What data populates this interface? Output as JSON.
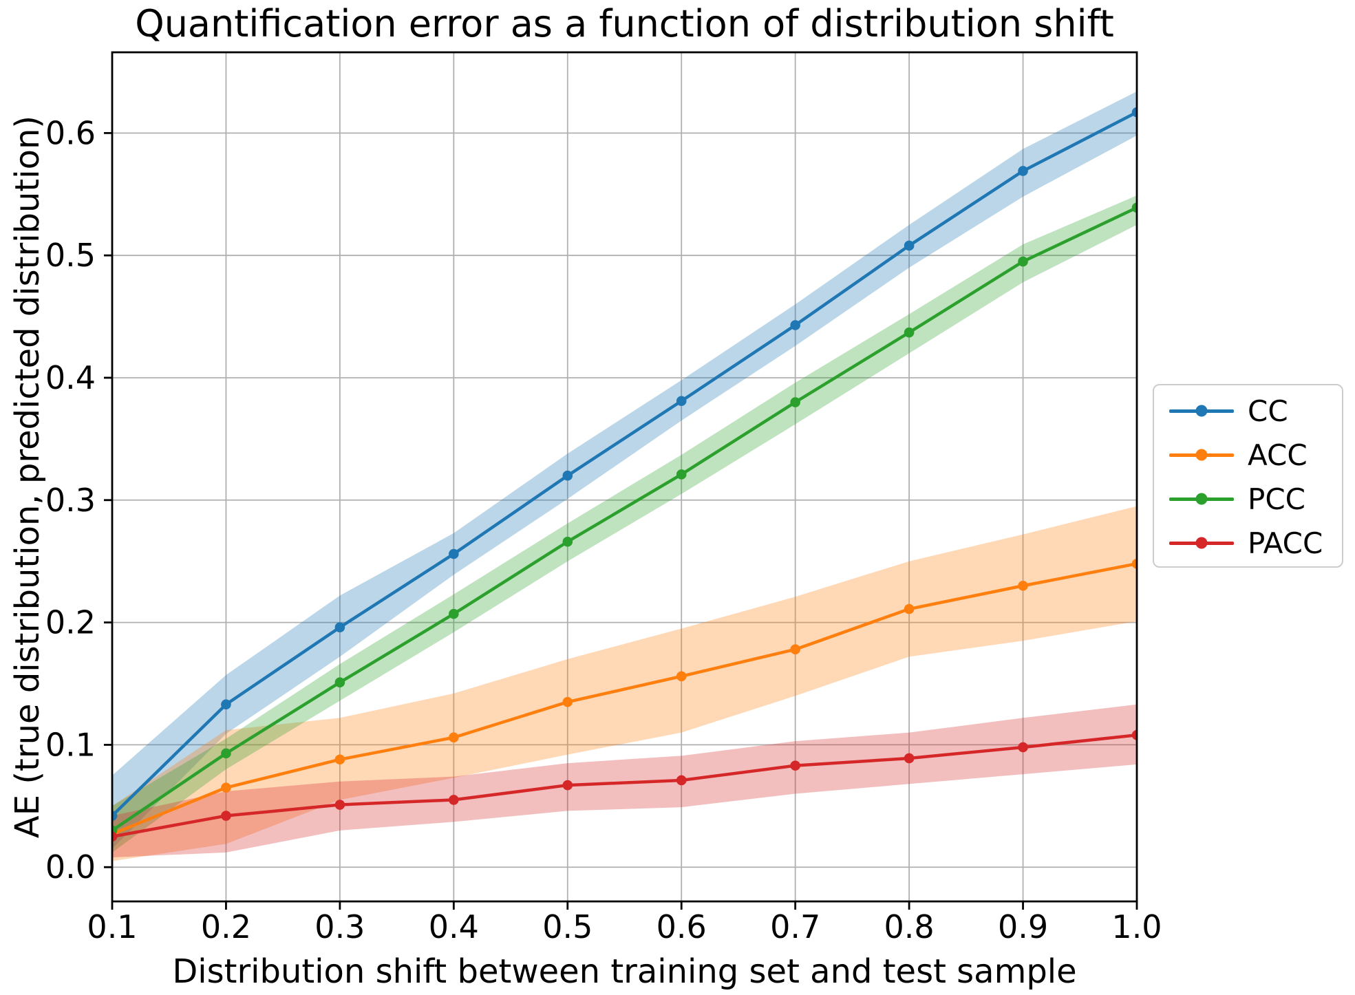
{
  "chart_data": {
    "type": "line",
    "title": "Quantification error as a function of distribution shift",
    "xlabel": "Distribution shift between training set and test sample",
    "ylabel": "AE (true distribution, predicted distribution)",
    "x": [
      0.1,
      0.2,
      0.3,
      0.4,
      0.5,
      0.6,
      0.7,
      0.8,
      0.9,
      1.0
    ],
    "x_ticks": [
      "0.1",
      "0.2",
      "0.3",
      "0.4",
      "0.5",
      "0.6",
      "0.7",
      "0.8",
      "0.9",
      "1.0"
    ],
    "y_ticks": [
      "0.0",
      "0.1",
      "0.2",
      "0.3",
      "0.4",
      "0.5",
      "0.6"
    ],
    "xlim": [
      0.1,
      1.0
    ],
    "ylim": [
      -0.028,
      0.666
    ],
    "grid": true,
    "legend_position": "outside-center-right",
    "band_opacity": 0.3,
    "series": [
      {
        "name": "CC",
        "color": "#1f77b4",
        "values": [
          0.042,
          0.133,
          0.196,
          0.256,
          0.32,
          0.381,
          0.443,
          0.508,
          0.569,
          0.617
        ],
        "band_upper": [
          0.075,
          0.157,
          0.222,
          0.273,
          0.338,
          0.398,
          0.46,
          0.525,
          0.587,
          0.634
        ],
        "band_lower": [
          0.015,
          0.109,
          0.172,
          0.239,
          0.301,
          0.365,
          0.426,
          0.49,
          0.548,
          0.598
        ]
      },
      {
        "name": "ACC",
        "color": "#ff7f0e",
        "values": [
          0.027,
          0.065,
          0.088,
          0.106,
          0.135,
          0.156,
          0.178,
          0.211,
          0.23,
          0.248
        ],
        "band_upper": [
          0.05,
          0.112,
          0.122,
          0.142,
          0.17,
          0.195,
          0.221,
          0.25,
          0.272,
          0.295
        ],
        "band_lower": [
          0.005,
          0.019,
          0.055,
          0.073,
          0.092,
          0.11,
          0.14,
          0.172,
          0.185,
          0.201
        ]
      },
      {
        "name": "PCC",
        "color": "#2ca02c",
        "values": [
          0.03,
          0.093,
          0.151,
          0.207,
          0.266,
          0.321,
          0.38,
          0.437,
          0.495,
          0.539
        ],
        "band_upper": [
          0.05,
          0.105,
          0.166,
          0.223,
          0.281,
          0.337,
          0.396,
          0.452,
          0.509,
          0.549
        ],
        "band_lower": [
          0.012,
          0.08,
          0.136,
          0.192,
          0.25,
          0.305,
          0.362,
          0.42,
          0.478,
          0.525
        ]
      },
      {
        "name": "PACC",
        "color": "#d62728",
        "values": [
          0.025,
          0.042,
          0.051,
          0.055,
          0.067,
          0.071,
          0.083,
          0.089,
          0.098,
          0.108
        ],
        "band_upper": [
          0.042,
          0.062,
          0.07,
          0.074,
          0.085,
          0.091,
          0.103,
          0.11,
          0.122,
          0.133
        ],
        "band_lower": [
          0.008,
          0.012,
          0.03,
          0.037,
          0.046,
          0.049,
          0.06,
          0.068,
          0.076,
          0.084
        ]
      }
    ],
    "colors": {
      "grid": "#b0b0b0",
      "spine": "#000000",
      "legend_border": "#cccccc",
      "text": "#000000",
      "background": "#ffffff"
    }
  }
}
